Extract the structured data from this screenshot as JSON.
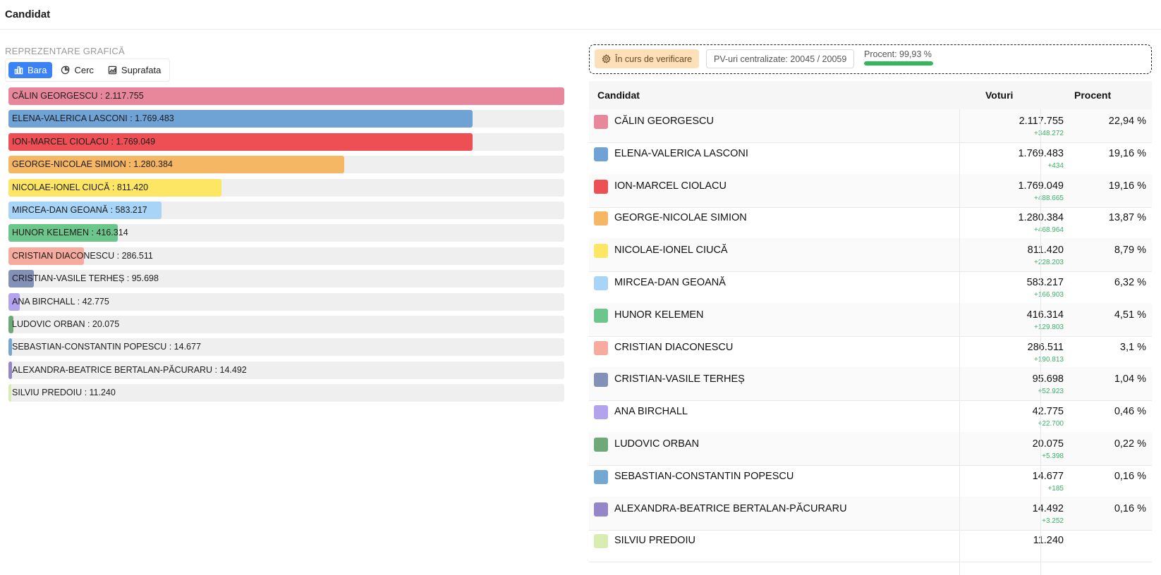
{
  "header": {
    "title": "Candidat"
  },
  "chart_panel": {
    "section_label": "REPREZENTARE GRAFICĂ",
    "toggle": [
      {
        "label": "Bara",
        "icon": "bar-chart-icon",
        "active": true
      },
      {
        "label": "Cerc",
        "icon": "pie-chart-icon",
        "active": false
      },
      {
        "label": "Suprafata",
        "icon": "area-chart-icon",
        "active": false
      }
    ]
  },
  "status": {
    "verification_label": "În curs de verificare",
    "pv_label": "PV-uri centralizate: 20045 / 20059",
    "procent_label": "Procent: 99,93 %",
    "procent_value": 99.93,
    "progress_color": "#34b65a"
  },
  "table": {
    "headers": {
      "candidate": "Candidat",
      "votes": "Voturi",
      "percent": "Procent"
    }
  },
  "candidates": [
    {
      "name": "CĂLIN GEORGESCU",
      "bar_text": "CĂLIN GEORGESCU : 2.117.755",
      "votes_text": "2.117.755",
      "delta": "+348.272",
      "percent": "22,94 %",
      "color": "#e8879c"
    },
    {
      "name": "ELENA-VALERICA LASCONI",
      "bar_text": "ELENA-VALERICA LASCONI : 1.769.483",
      "votes_text": "1.769.483",
      "delta": "+434",
      "percent": "19,16 %",
      "color": "#6fa3d6"
    },
    {
      "name": "ION-MARCEL CIOLACU",
      "bar_text": "ION-MARCEL CIOLACU : 1.769.049",
      "votes_text": "1.769.049",
      "delta": "+488.665",
      "percent": "19,16 %",
      "color": "#ee4f55"
    },
    {
      "name": "GEORGE-NICOLAE SIMION",
      "bar_text": "GEORGE-NICOLAE SIMION : 1.280.384",
      "votes_text": "1.280.384",
      "delta": "+468.964",
      "percent": "13,87 %",
      "color": "#f5b764"
    },
    {
      "name": "NICOLAE-IONEL CIUCĂ",
      "bar_text": "NICOLAE-IONEL CIUCĂ : 811.420",
      "votes_text": "811.420",
      "delta": "+228.203",
      "percent": "8,79 %",
      "color": "#fde664"
    },
    {
      "name": "MIRCEA-DAN GEOANĂ",
      "bar_text": "MIRCEA-DAN GEOANĂ : 583.217",
      "votes_text": "583.217",
      "delta": "+166.903",
      "percent": "6,32 %",
      "color": "#a8d4f8"
    },
    {
      "name": "HUNOR KELEMEN",
      "bar_text": "HUNOR KELEMEN : 416.314",
      "votes_text": "416.314",
      "delta": "+129.803",
      "percent": "4,51 %",
      "color": "#6cc58a"
    },
    {
      "name": "CRISTIAN DIACONESCU",
      "bar_text": "CRISTIAN DIACONESCU : 286.511",
      "votes_text": "286.511",
      "delta": "+190.813",
      "percent": "3,1 %",
      "color": "#f6ab9e"
    },
    {
      "name": "CRISTIAN-VASILE TERHEȘ",
      "bar_text": "CRISTIAN-VASILE TERHEȘ : 95.698",
      "votes_text": "95.698",
      "delta": "+52.923",
      "percent": "1,04 %",
      "color": "#8390b8"
    },
    {
      "name": "ANA BIRCHALL",
      "bar_text": "ANA BIRCHALL : 42.775",
      "votes_text": "42.775",
      "delta": "+22.700",
      "percent": "0,46 %",
      "color": "#b2a3ec"
    },
    {
      "name": "LUDOVIC ORBAN",
      "bar_text": "LUDOVIC ORBAN : 20.075",
      "votes_text": "20.075",
      "delta": "+5.398",
      "percent": "0,22 %",
      "color": "#6daa78"
    },
    {
      "name": "SEBASTIAN-CONSTANTIN POPESCU",
      "bar_text": "SEBASTIAN-CONSTANTIN POPESCU : 14.677",
      "votes_text": "14.677",
      "delta": "+185",
      "percent": "0,16 %",
      "color": "#72a8d2"
    },
    {
      "name": "ALEXANDRA-BEATRICE BERTALAN-PĂCURARU",
      "bar_text": "ALEXANDRA-BEATRICE BERTALAN-PĂCURARU : 14.492",
      "votes_text": "14.492",
      "delta": "+3.252",
      "percent": "0,16 %",
      "color": "#9486c8"
    },
    {
      "name": "SILVIU PREDOIU",
      "bar_text": "SILVIU PREDOIU : 11.240",
      "votes_text": "11.240",
      "percent": "",
      "delta": "",
      "color": "#d9ecb1"
    }
  ],
  "chart_data": {
    "type": "bar",
    "orientation": "horizontal",
    "categories": [
      "CĂLIN GEORGESCU",
      "ELENA-VALERICA LASCONI",
      "ION-MARCEL CIOLACU",
      "GEORGE-NICOLAE SIMION",
      "NICOLAE-IONEL CIUCĂ",
      "MIRCEA-DAN GEOANĂ",
      "HUNOR KELEMEN",
      "CRISTIAN DIACONESCU",
      "CRISTIAN-VASILE TERHEȘ",
      "ANA BIRCHALL",
      "LUDOVIC ORBAN",
      "SEBASTIAN-CONSTANTIN POPESCU",
      "ALEXANDRA-BEATRICE BERTALAN-PĂCURARU",
      "SILVIU PREDOIU"
    ],
    "values": [
      2117755,
      1769483,
      1769049,
      1280384,
      811420,
      583217,
      416314,
      286511,
      95698,
      42775,
      20075,
      14677,
      14492,
      11240
    ],
    "xlim": [
      0,
      2117755
    ],
    "grid": false
  }
}
